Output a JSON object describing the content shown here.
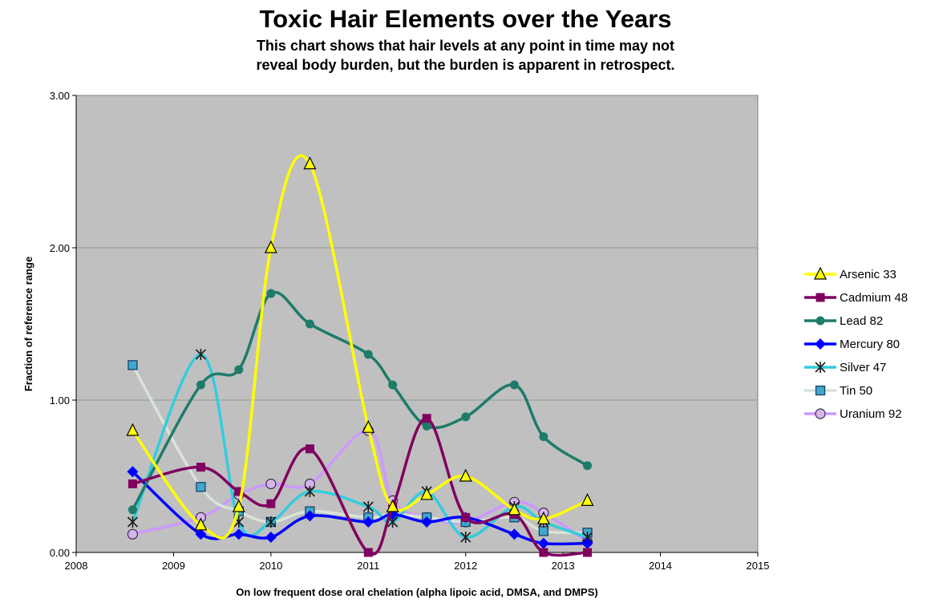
{
  "chart_data": {
    "type": "line",
    "title": "Toxic Hair Elements over the Years",
    "subtitle_lines": [
      "This chart shows that hair levels at any point in time may not",
      "reveal body burden, but the burden is apparent in retrospect."
    ],
    "xlabel": "On low frequent dose oral chelation (alpha lipoic acid, DMSA, and DMPS)",
    "ylabel": "Fraction of reference range",
    "xlim": [
      2008,
      2015
    ],
    "ylim": [
      0,
      3
    ],
    "x_ticks": [
      "2008",
      "2009",
      "2010",
      "2011",
      "2012",
      "2013",
      "2014",
      "2015"
    ],
    "y_ticks": [
      "0.00",
      "1.00",
      "2.00",
      "3.00"
    ],
    "grid": "horizontal",
    "background": "#c0c0c0",
    "legend_position": "right",
    "series": [
      {
        "name": "Arsenic 33",
        "color": "#ffff00",
        "marker": "triangle",
        "x": [
          2008.58,
          2009.28,
          2009.67,
          2010.0,
          2010.4,
          2011.0,
          2011.25,
          2011.6,
          2012.0,
          2012.5,
          2012.8,
          2013.25
        ],
        "y": [
          0.8,
          0.18,
          0.3,
          2.0,
          2.55,
          0.82,
          0.3,
          0.38,
          0.5,
          0.28,
          0.22,
          0.34
        ]
      },
      {
        "name": "Cadmium 48",
        "color": "#800060",
        "marker": "square",
        "x": [
          2008.58,
          2009.28,
          2009.67,
          2010.0,
          2010.4,
          2011.0,
          2011.25,
          2011.6,
          2012.0,
          2012.5,
          2012.8,
          2013.25
        ],
        "y": [
          0.45,
          0.56,
          0.4,
          0.32,
          0.68,
          0.0,
          0.3,
          0.88,
          0.23,
          0.25,
          0.0,
          0.0
        ]
      },
      {
        "name": "Lead 82",
        "color": "#1e7b6a",
        "marker": "circle",
        "x": [
          2008.58,
          2009.28,
          2009.67,
          2010.0,
          2010.4,
          2011.0,
          2011.25,
          2011.6,
          2012.0,
          2012.5,
          2012.8,
          2013.25
        ],
        "y": [
          0.28,
          1.1,
          1.2,
          1.7,
          1.5,
          1.3,
          1.1,
          0.83,
          0.89,
          1.1,
          0.76,
          0.57
        ]
      },
      {
        "name": "Mercury 80",
        "color": "#0000ff",
        "marker": "diamond",
        "x": [
          2008.58,
          2009.28,
          2009.67,
          2010.0,
          2010.4,
          2011.0,
          2011.25,
          2011.6,
          2012.0,
          2012.5,
          2012.8,
          2013.25
        ],
        "y": [
          0.53,
          0.12,
          0.12,
          0.1,
          0.24,
          0.2,
          0.25,
          0.2,
          0.23,
          0.12,
          0.06,
          0.06
        ]
      },
      {
        "name": "Silver 47",
        "color": "#33ccdd",
        "marker": "asterisk",
        "x": [
          2008.58,
          2009.28,
          2009.67,
          2010.0,
          2010.4,
          2011.0,
          2011.25,
          2011.6,
          2012.0,
          2012.5,
          2012.8,
          2013.25
        ],
        "y": [
          0.2,
          1.3,
          0.2,
          0.2,
          0.4,
          0.3,
          0.2,
          0.4,
          0.1,
          0.3,
          0.2,
          0.1
        ]
      },
      {
        "name": "Tin 50",
        "color": "#d8e4d8",
        "marker": "square-box",
        "x": [
          2008.58,
          2009.28,
          2009.67,
          2010.0,
          2010.4,
          2011.0,
          2011.25,
          2011.6,
          2012.0,
          2012.5,
          2012.8,
          2013.25
        ],
        "y": [
          1.23,
          0.43,
          0.27,
          0.2,
          0.27,
          0.23,
          0.25,
          0.23,
          0.2,
          0.23,
          0.14,
          0.13
        ]
      },
      {
        "name": "Uranium 92",
        "color": "#cc99ff",
        "marker": "circle-open",
        "x": [
          2008.58,
          2009.28,
          2009.67,
          2010.0,
          2010.4,
          2011.0,
          2011.25,
          2011.6,
          2012.0,
          2012.5,
          2012.8,
          2013.25
        ],
        "y": [
          0.12,
          0.23,
          0.38,
          0.45,
          0.45,
          0.8,
          0.34,
          0.23,
          0.2,
          0.33,
          0.26,
          0.07
        ]
      }
    ]
  }
}
